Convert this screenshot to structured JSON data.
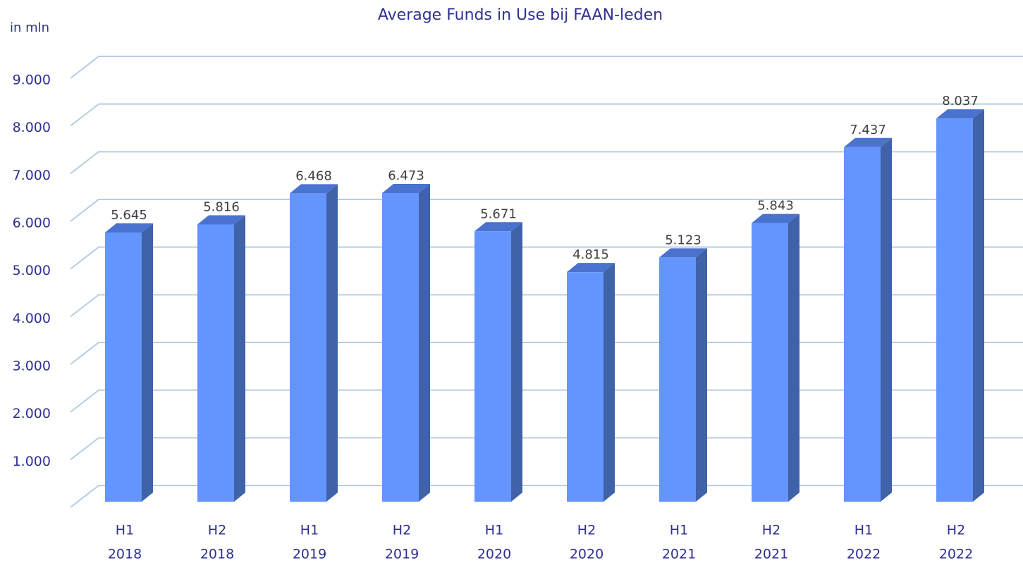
{
  "chart_data": {
    "type": "bar3d",
    "title": "Average Funds in Use bij FAAN-leden",
    "y_label": "in mln",
    "categories": [
      [
        "H1",
        "2018"
      ],
      [
        "H2",
        "2018"
      ],
      [
        "H1",
        "2019"
      ],
      [
        "H2",
        "2019"
      ],
      [
        "H1",
        "2020"
      ],
      [
        "H2",
        "2020"
      ],
      [
        "H1",
        "2021"
      ],
      [
        "H2",
        "2021"
      ],
      [
        "H1",
        "2022"
      ],
      [
        "H2",
        "2022"
      ]
    ],
    "values": [
      5645,
      5816,
      6468,
      6473,
      5671,
      4815,
      5123,
      5843,
      7437,
      8037
    ],
    "value_labels": [
      "5.645",
      "5.816",
      "6.468",
      "6.473",
      "5.671",
      "4.815",
      "5.123",
      "5.843",
      "7.437",
      "8.037"
    ],
    "colors": {
      "front": "#6495ff",
      "side": "#3f62a8",
      "top": "#4a72cf"
    },
    "ylim": [
      0,
      9000
    ],
    "yticks": [
      {
        "value": 1000,
        "label": "1.000"
      },
      {
        "value": 2000,
        "label": "2.000"
      },
      {
        "value": 3000,
        "label": "3.000"
      },
      {
        "value": 4000,
        "label": "4.000"
      },
      {
        "value": 5000,
        "label": "5.000"
      },
      {
        "value": 6000,
        "label": "6.000"
      },
      {
        "value": 7000,
        "label": "7.000"
      },
      {
        "value": 8000,
        "label": "8.000"
      },
      {
        "value": 9000,
        "label": "9.000"
      }
    ],
    "grid": true
  }
}
